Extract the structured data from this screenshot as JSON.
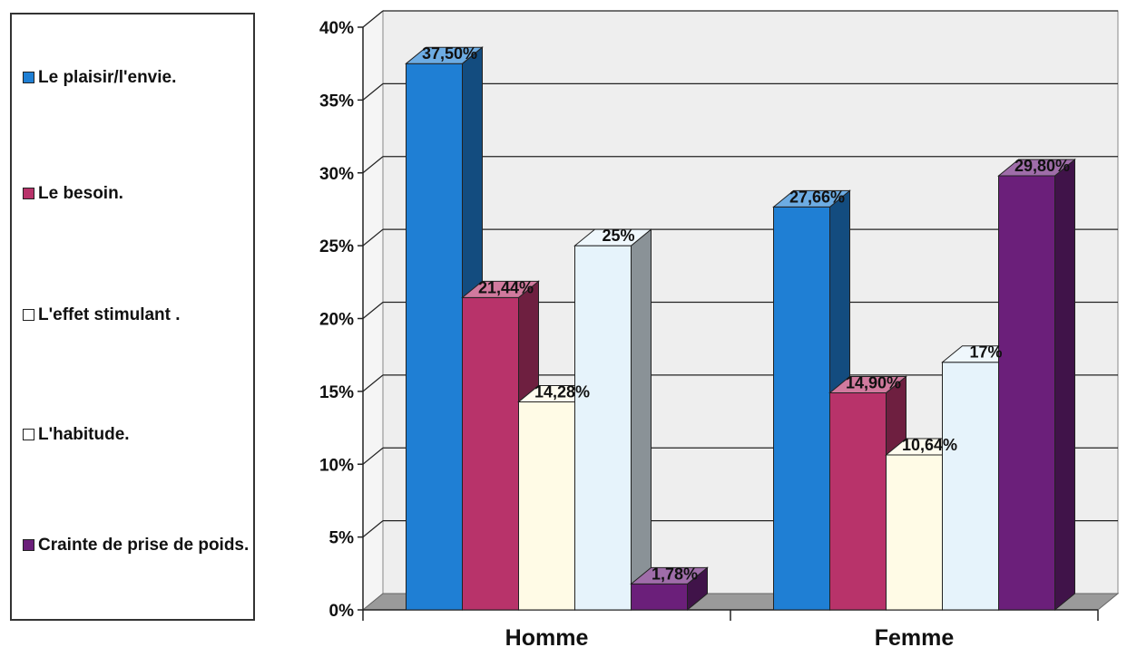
{
  "chart_data": {
    "type": "bar",
    "categories": [
      "Homme",
      "Femme"
    ],
    "series": [
      {
        "name": "Le plaisir/l'envie.",
        "color": "#1f7fd4",
        "values": [
          37.5,
          27.66
        ],
        "labels": [
          "37,50%",
          "27,66%"
        ]
      },
      {
        "name": "Le besoin.",
        "color": "#b8336a",
        "values": [
          21.44,
          14.9
        ],
        "labels": [
          "21,44%",
          "14,90%"
        ]
      },
      {
        "name": "L'effet stimulant .",
        "color": "#fffbe6",
        "values": [
          14.28,
          10.64
        ],
        "labels": [
          "14,28%",
          "10,64%"
        ]
      },
      {
        "name": "L'habitude.",
        "color": "#e6f3fb",
        "values": [
          25,
          17
        ],
        "labels": [
          "25%",
          "17%"
        ]
      },
      {
        "name": "Crainte de prise de poids.",
        "color": "#6b1f7a",
        "values": [
          1.78,
          29.8
        ],
        "labels": [
          "1,78%",
          "29,80%"
        ]
      }
    ],
    "yticks": [
      "0%",
      "5%",
      "10%",
      "15%",
      "20%",
      "25%",
      "30%",
      "35%",
      "40%"
    ],
    "ylim": [
      0,
      40
    ],
    "grid": true,
    "legend": "left"
  }
}
